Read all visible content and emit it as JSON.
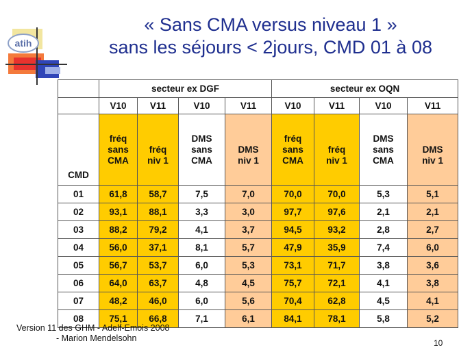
{
  "title": {
    "line1": "« Sans CMA versus niveau 1 »",
    "line2": "sans les séjours < 2jours, CMD 01 à 08"
  },
  "logo": {
    "text": "atih"
  },
  "table": {
    "sectors": [
      "secteur ex DGF",
      "secteur ex OQN"
    ],
    "versions": [
      "V10",
      "V11",
      "V10",
      "V11",
      "V10",
      "V11",
      "V10",
      "V11"
    ],
    "cmd_label": "CMD",
    "subheaders": [
      [
        "fréq",
        "sans",
        "CMA"
      ],
      [
        "fréq",
        "niv 1"
      ],
      [
        "DMS",
        "sans",
        "CMA"
      ],
      [
        "DMS",
        "niv 1"
      ],
      [
        "fréq",
        "sans",
        "CMA"
      ],
      [
        "fréq",
        "niv 1"
      ],
      [
        "DMS",
        "sans",
        "CMA"
      ],
      [
        "DMS",
        "niv 1"
      ]
    ],
    "rows": [
      [
        "01",
        "61,8",
        "58,7",
        "7,5",
        "7,0",
        "70,0",
        "70,0",
        "5,3",
        "5,1"
      ],
      [
        "02",
        "93,1",
        "88,1",
        "3,3",
        "3,0",
        "97,7",
        "97,6",
        "2,1",
        "2,1"
      ],
      [
        "03",
        "88,2",
        "79,2",
        "4,1",
        "3,7",
        "94,5",
        "93,2",
        "2,8",
        "2,7"
      ],
      [
        "04",
        "56,0",
        "37,1",
        "8,1",
        "5,7",
        "47,9",
        "35,9",
        "7,4",
        "6,0"
      ],
      [
        "05",
        "56,7",
        "53,7",
        "6,0",
        "5,3",
        "73,1",
        "71,7",
        "3,8",
        "3,6"
      ],
      [
        "06",
        "64,0",
        "63,7",
        "4,8",
        "4,5",
        "75,7",
        "72,1",
        "4,1",
        "3,8"
      ],
      [
        "07",
        "48,2",
        "46,0",
        "6,0",
        "5,6",
        "70,4",
        "62,8",
        "4,5",
        "4,1"
      ],
      [
        "08",
        "75,1",
        "66,8",
        "7,1",
        "6,1",
        "84,1",
        "78,1",
        "5,8",
        "5,2"
      ]
    ]
  },
  "footer": {
    "line1": "Version 11 des GHM - Adelf-Emois 2008",
    "line2": "- Marion Mendelsohn"
  },
  "page_number": "10",
  "colors": {
    "title": "#1f2f8f",
    "yellow": "#ffcc00",
    "peach": "#ffcc99"
  }
}
